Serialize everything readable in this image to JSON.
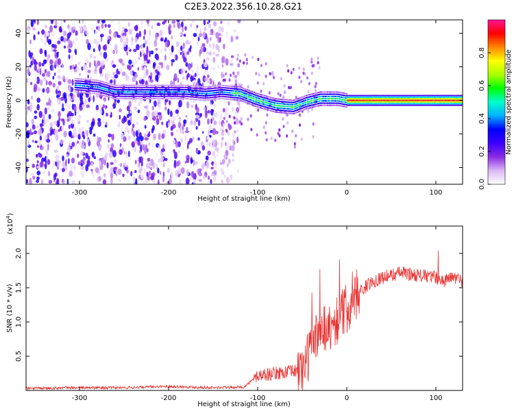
{
  "title": "C2E3.2022.356.10.28.G21",
  "chart_data": [
    {
      "type": "heatmap",
      "xlabel": "Height of straight line (km)",
      "ylabel": "Frequency (Hz)",
      "xlim": [
        -360,
        130
      ],
      "ylim": [
        -50,
        48
      ],
      "x_ticks": [
        -300,
        -200,
        -100,
        0,
        100
      ],
      "y_ticks": [
        -40,
        -20,
        0,
        20,
        40
      ],
      "grid": false,
      "colorbar": {
        "label": "Normalized spectral amplitude",
        "range": [
          0.0,
          1.0
        ],
        "ticks": [
          "0.0",
          "0.2",
          "0.4",
          "0.6",
          "0.8"
        ],
        "colors": [
          "#ffffff",
          "#d9b8f5",
          "#8a2be2",
          "#3b00ff",
          "#0000ff",
          "#00b0ff",
          "#00ffcc",
          "#00ff00",
          "#aaff00",
          "#ffff00",
          "#ff8800",
          "#ff0000",
          "#ff1493"
        ]
      },
      "ridge": {
        "x": [
          -305,
          -280,
          -260,
          -240,
          -220,
          -200,
          -180,
          -160,
          -140,
          -120,
          -100,
          -80,
          -60,
          -45,
          -30,
          -10,
          0,
          50,
          130
        ],
        "y": [
          9,
          8,
          5,
          5,
          5,
          5,
          5,
          4,
          5,
          4,
          0,
          -3,
          -4,
          -1,
          1,
          1,
          0,
          0,
          0
        ]
      }
    },
    {
      "type": "line",
      "xlabel": "Height of straight line (km)",
      "ylabel": "SNR (10 * v/v)",
      "y_multiplier": "(x10",
      "y_multiplier_exp": "4",
      "y_multiplier_close": ")",
      "xlim": [
        -360,
        130
      ],
      "ylim": [
        0.0,
        2.4
      ],
      "x_ticks": [
        -300,
        -200,
        -100,
        0,
        100
      ],
      "y_ticks": [
        "0.5",
        "1.0",
        "1.5",
        "2.0"
      ],
      "grid": false,
      "line_color": "#e8302f",
      "series": [
        {
          "x": [
            -360,
            -300,
            -250,
            -200,
            -150,
            -115,
            -100,
            -80,
            -60,
            -50,
            -40,
            -30,
            -20,
            -10,
            0,
            10,
            20,
            30,
            40,
            50,
            60,
            80,
            100,
            110,
            120,
            130
          ],
          "y": [
            0.03,
            0.04,
            0.04,
            0.06,
            0.04,
            0.05,
            0.22,
            0.25,
            0.28,
            0.3,
            0.6,
            0.95,
            0.9,
            1.05,
            1.2,
            1.4,
            1.5,
            1.6,
            1.65,
            1.68,
            1.72,
            1.68,
            1.65,
            1.6,
            1.65,
            1.6
          ]
        }
      ]
    }
  ]
}
